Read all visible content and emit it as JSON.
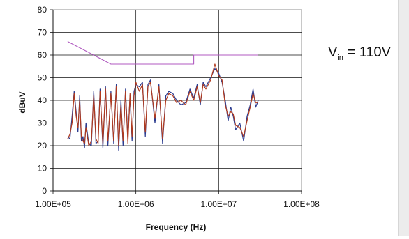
{
  "annotation": {
    "symbol": "V",
    "subscript": "in",
    "value": "= 110V"
  },
  "chart_data": {
    "type": "line",
    "title": "",
    "xlabel": "Frequency (Hz)",
    "ylabel": "dBuV",
    "xscale": "log",
    "xlim": [
      100000,
      100000000
    ],
    "ylim": [
      0,
      80
    ],
    "grid": "vertical at decades, horizontal every 10",
    "x_ticks": [
      "1.00E+05",
      "1.00E+06",
      "1.00E+07",
      "1.00E+08"
    ],
    "y_ticks": [
      "0",
      "10",
      "20",
      "30",
      "40",
      "50",
      "60",
      "70",
      "80"
    ],
    "colors": {
      "limit": "#b05ac0",
      "series_a": "#2b3b8f",
      "series_b": "#b03a1e"
    },
    "series": [
      {
        "role": "limit",
        "x": [
          150000,
          500000,
          5000000,
          5000000,
          30000000
        ],
        "y": [
          66,
          56,
          56,
          60,
          60
        ]
      },
      {
        "role": "measurement-a",
        "x": [
          150000,
          160000,
          170000,
          180000,
          190000,
          200000,
          210000,
          220000,
          230000,
          240000,
          250000,
          270000,
          290000,
          310000,
          330000,
          350000,
          370000,
          400000,
          430000,
          460000,
          500000,
          540000,
          580000,
          620000,
          660000,
          700000,
          750000,
          800000,
          850000,
          900000,
          950000,
          1000000,
          1100000,
          1200000,
          1300000,
          1400000,
          1500000,
          1700000,
          1900000,
          2100000,
          2300000,
          2500000,
          2800000,
          3100000,
          3500000,
          4000000,
          4500000,
          5000000,
          5500000,
          6000000,
          6500000,
          7000000,
          8000000,
          9000000,
          10000000,
          11000000,
          12000000,
          13000000,
          14000000,
          15000000,
          16000000,
          18000000,
          20000000,
          22000000,
          24000000,
          26000000,
          28000000,
          30000000
        ],
        "y": [
          24,
          23,
          33,
          44,
          35,
          26,
          42,
          22,
          24,
          19,
          30,
          21,
          20,
          44,
          21,
          22,
          45,
          19,
          46,
          20,
          44,
          21,
          47,
          18,
          40,
          20,
          45,
          23,
          42,
          22,
          44,
          47,
          46,
          48,
          24,
          47,
          49,
          30,
          47,
          21,
          42,
          44,
          43,
          40,
          38,
          39,
          45,
          41,
          47,
          38,
          48,
          46,
          50,
          54,
          52,
          48,
          40,
          31,
          37,
          33,
          27,
          30,
          22,
          33,
          38,
          45,
          37,
          40
        ]
      },
      {
        "role": "measurement-b",
        "x": [
          150000,
          160000,
          170000,
          180000,
          190000,
          200000,
          210000,
          220000,
          230000,
          240000,
          250000,
          270000,
          290000,
          310000,
          330000,
          350000,
          370000,
          400000,
          430000,
          460000,
          500000,
          540000,
          580000,
          620000,
          660000,
          700000,
          750000,
          800000,
          850000,
          900000,
          950000,
          1000000,
          1100000,
          1200000,
          1300000,
          1400000,
          1500000,
          1700000,
          1900000,
          2100000,
          2300000,
          2500000,
          2800000,
          3100000,
          3500000,
          4000000,
          4500000,
          5000000,
          5500000,
          6000000,
          6500000,
          7000000,
          8000000,
          9000000,
          10000000,
          11000000,
          12000000,
          13000000,
          14000000,
          15000000,
          16000000,
          18000000,
          20000000,
          22000000,
          24000000,
          26000000,
          28000000,
          30000000
        ],
        "y": [
          23,
          25,
          30,
          43,
          33,
          28,
          40,
          24,
          22,
          21,
          28,
          20,
          22,
          42,
          23,
          21,
          44,
          21,
          45,
          22,
          43,
          22,
          46,
          20,
          38,
          22,
          44,
          21,
          43,
          24,
          42,
          48,
          44,
          47,
          26,
          46,
          48,
          32,
          46,
          23,
          40,
          43,
          42,
          39,
          40,
          38,
          44,
          40,
          46,
          39,
          47,
          45,
          49,
          56,
          51,
          49,
          38,
          33,
          35,
          34,
          29,
          28,
          24,
          31,
          37,
          43,
          39,
          39
        ]
      }
    ]
  }
}
